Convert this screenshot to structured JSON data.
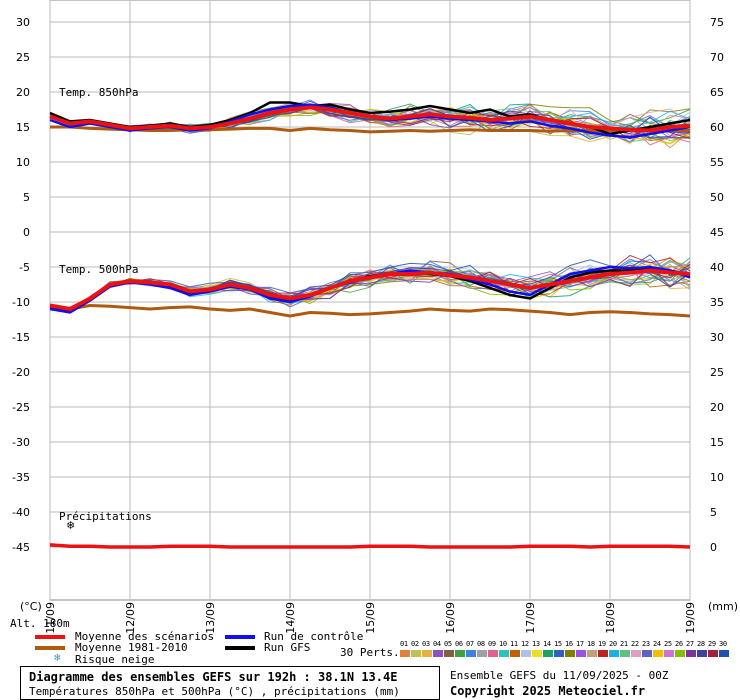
{
  "chart_data": {
    "type": "line",
    "title": "Diagramme des ensembles GEFS sur 192h : 38.1N 13.4E",
    "subtitle": "Températures 850hPa et 500hPa (°C) , précipitations (mm)",
    "x_ticks": [
      "11/09",
      "12/09",
      "13/09",
      "14/09",
      "15/09",
      "16/09",
      "17/09",
      "18/09",
      "19/09"
    ],
    "left_axis": {
      "unit_label": "(°C)",
      "ticks": [
        30,
        25,
        20,
        15,
        10,
        5,
        0,
        -5,
        -10,
        -15,
        -20,
        -25,
        -30,
        -35,
        -40,
        -45
      ],
      "range": [
        -45,
        30
      ]
    },
    "right_axis": {
      "unit_label": "(mm)",
      "ticks": [
        75,
        70,
        65,
        60,
        55,
        50,
        45,
        40,
        35,
        30,
        25,
        20,
        15,
        10,
        5,
        0
      ]
    },
    "panels": [
      {
        "label": "Temp. 850hPa",
        "mean_scenarios": [
          16.5,
          15.5,
          15.8,
          15.3,
          14.8,
          15.0,
          15.2,
          14.8,
          15.0,
          15.5,
          16.2,
          17.0,
          17.5,
          17.8,
          17.5,
          17.0,
          16.5,
          16.2,
          16.5,
          16.8,
          16.5,
          16.3,
          16.0,
          16.2,
          16.5,
          16.0,
          15.5,
          15.0,
          14.8,
          14.6,
          14.5,
          15.0,
          15.2
        ],
        "control_run": [
          16.0,
          15.0,
          15.5,
          15.0,
          14.5,
          14.8,
          15.0,
          14.5,
          14.8,
          15.8,
          16.8,
          17.5,
          18.0,
          18.2,
          17.8,
          17.0,
          16.5,
          16.0,
          16.2,
          16.5,
          16.2,
          16.0,
          15.8,
          15.5,
          15.8,
          15.2,
          14.8,
          14.2,
          13.8,
          13.5,
          14.0,
          14.5,
          15.0
        ],
        "gfs_run": [
          17.0,
          15.8,
          16.0,
          15.5,
          15.0,
          15.2,
          15.5,
          15.0,
          15.3,
          16.0,
          17.0,
          18.5,
          18.5,
          18.0,
          18.2,
          17.5,
          17.0,
          17.2,
          17.5,
          18.0,
          17.5,
          17.0,
          17.5,
          16.5,
          16.8,
          16.0,
          15.5,
          15.0,
          14.0,
          14.5,
          15.0,
          15.5,
          16.0
        ],
        "climatology": [
          15.0,
          15.0,
          14.8,
          14.7,
          14.6,
          14.5,
          14.5,
          14.6,
          14.6,
          14.7,
          14.8,
          14.8,
          14.5,
          14.8,
          14.6,
          14.5,
          14.3,
          14.4,
          14.5,
          14.4,
          14.5,
          14.6,
          14.5,
          14.5,
          14.5,
          14.4,
          14.5,
          14.5,
          14.5,
          14.6,
          14.5,
          14.5,
          14.5
        ]
      },
      {
        "label": "Temp. 500hPa",
        "mean_scenarios": [
          -10.5,
          -11.0,
          -9.5,
          -7.5,
          -7.0,
          -7.2,
          -7.5,
          -8.5,
          -8.2,
          -7.5,
          -8.0,
          -9.0,
          -9.5,
          -9.0,
          -8.0,
          -7.0,
          -6.5,
          -6.0,
          -6.0,
          -5.8,
          -6.2,
          -6.5,
          -7.0,
          -7.5,
          -8.0,
          -7.5,
          -7.0,
          -6.5,
          -6.0,
          -5.8,
          -5.5,
          -5.8,
          -6.0
        ],
        "control_run": [
          -11.0,
          -11.5,
          -9.8,
          -7.8,
          -7.2,
          -7.5,
          -8.0,
          -9.0,
          -8.5,
          -7.8,
          -8.2,
          -9.5,
          -10.0,
          -9.2,
          -8.0,
          -7.2,
          -6.5,
          -6.0,
          -5.5,
          -5.8,
          -6.0,
          -6.8,
          -7.5,
          -8.5,
          -9.0,
          -7.5,
          -6.0,
          -5.5,
          -5.0,
          -5.2,
          -5.0,
          -5.5,
          -6.5
        ],
        "gfs_run": [
          -10.8,
          -11.2,
          -9.5,
          -7.6,
          -7.0,
          -7.3,
          -7.8,
          -8.8,
          -8.3,
          -7.6,
          -8.0,
          -9.2,
          -9.8,
          -9.0,
          -8.0,
          -7.0,
          -6.3,
          -6.0,
          -5.8,
          -6.0,
          -6.3,
          -7.0,
          -8.0,
          -9.0,
          -9.5,
          -8.0,
          -6.5,
          -5.8,
          -5.5,
          -5.5,
          -5.2,
          -5.5,
          -6.2
        ],
        "climatology": [
          -10.8,
          -11.0,
          -10.5,
          -10.6,
          -10.8,
          -11.0,
          -10.8,
          -10.7,
          -11.0,
          -11.2,
          -11.0,
          -11.5,
          -12.0,
          -11.5,
          -11.6,
          -11.8,
          -11.7,
          -11.5,
          -11.3,
          -11.0,
          -11.2,
          -11.3,
          -11.0,
          -11.1,
          -11.3,
          -11.5,
          -11.8,
          -11.5,
          -11.4,
          -11.5,
          -11.7,
          -11.8,
          -12.0
        ]
      },
      {
        "label": "Précipitations",
        "mean_scenarios_mm": [
          0.3,
          0.1,
          0.1,
          0,
          0,
          0,
          0.1,
          0.1,
          0.1,
          0,
          0,
          0,
          0,
          0,
          0,
          0,
          0.1,
          0.1,
          0.1,
          0,
          0,
          0,
          0,
          0,
          0.1,
          0.1,
          0.1,
          0,
          0.1,
          0.1,
          0.1,
          0.1,
          0
        ]
      }
    ],
    "perturbation_count": 30
  },
  "legend": {
    "altitude": "Alt. 180m",
    "mean_scenarios": "Moyenne des scénarios",
    "climatology": "Moyenne 1981-2010",
    "snow_risk": "Risque neige",
    "control_run": "Run de contrôle",
    "gfs_run": "Run GFS",
    "perts_label": "30 Perts.",
    "pert_numbers": [
      "01",
      "02",
      "03",
      "04",
      "05",
      "06",
      "07",
      "08",
      "09",
      "10",
      "11",
      "12",
      "13",
      "14",
      "15",
      "16",
      "17",
      "18",
      "19",
      "20",
      "21",
      "22",
      "23",
      "24",
      "25",
      "26",
      "27",
      "28",
      "29",
      "30"
    ],
    "pert_colors": [
      "#e0803c",
      "#c0c050",
      "#e8b040",
      "#9050c0",
      "#806040",
      "#40a040",
      "#4080e0",
      "#a0a0a0",
      "#e06090",
      "#30c0c0",
      "#c06000",
      "#b0c0e0",
      "#e8e020",
      "#20a060",
      "#3060c0",
      "#808000",
      "#a050e0",
      "#c0a080",
      "#c02020",
      "#20b0e0",
      "#60c080",
      "#e0a0c0",
      "#6060c0",
      "#f0c000",
      "#d070d0",
      "#80c000",
      "#8030a0",
      "#4040a0",
      "#a02040",
      "#2050b0"
    ]
  },
  "footer": {
    "title": "Diagramme des ensembles GEFS sur 192h : 38.1N 13.4E",
    "subtitle": "Températures 850hPa et 500hPa (°C) , précipitations (mm)",
    "ensemble": "Ensemble GEFS du 11/09/2025 - 00Z",
    "copyright": "Copyright 2025 Meteociel.fr"
  },
  "colors": {
    "mean": "#ee1111",
    "climatology": "#b05a10",
    "control": "#1010ee",
    "gfs": "#000000",
    "grid": "#bbbbbb"
  }
}
